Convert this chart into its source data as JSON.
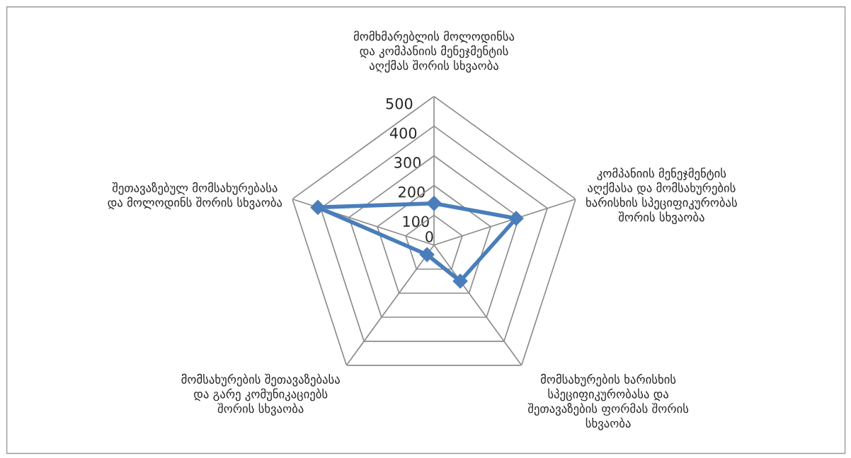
{
  "chart_data": {
    "type": "radar",
    "categories": [
      "მომხმარებლის მოლოდინსა\nდა კომპანიის მენეჯმენტის\nაღქმას შორის სხვაობა",
      "კომპანიის მენეჯმენტის\nაღქმასა და მომსახურების\nხარისხის სპეციფიკურობას\nშორის სხვაობა",
      "მომსახურების ხარისხის\nსპეციფიკურობასა და\nშეთავაზების ფორმას შორის\nსხვაობა",
      "მომსახურების შეთავაზებასა\nდა გარე კომუნიკაციებს\nშორის სხვაობა",
      "შეთავაზებულ მომსახურებასა\nდა მოლოდინს შორის სხვაობა"
    ],
    "series": [
      {
        "color": "#4a7ebb",
        "values": [
          140,
          290,
          150,
          40,
          410
        ]
      }
    ],
    "ylim": [
      0,
      500
    ],
    "yticks": [
      0,
      100,
      200,
      300,
      400,
      500
    ],
    "grid": true,
    "marker": "diamond",
    "line_style": "solid"
  }
}
